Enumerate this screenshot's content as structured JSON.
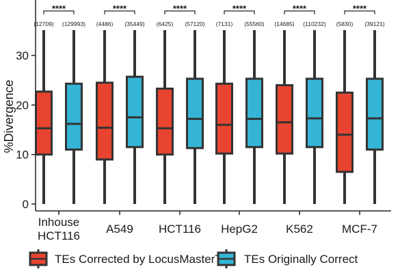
{
  "chart_data": {
    "type": "boxplot",
    "ylabel": "%Divergence",
    "ylim": [
      -1,
      37
    ],
    "yticks": [
      0,
      10,
      20,
      30
    ],
    "legend_position": "bottom",
    "series": [
      {
        "name": "TEs Corrected by LocusMasterTE",
        "color": "#e8442f"
      },
      {
        "name": "TEs Originally Correct",
        "color": "#35b5d6"
      }
    ],
    "groups": [
      {
        "label_lines": [
          "Inhouse",
          "HCT116"
        ],
        "significance": "****",
        "boxes": [
          {
            "n": "(12709)",
            "min": 0,
            "q1": 10,
            "median": 15.3,
            "q3": 22.7,
            "max": 38
          },
          {
            "n": "(129993)",
            "min": 0,
            "q1": 11,
            "median": 16.2,
            "q3": 24.3,
            "max": 38
          }
        ]
      },
      {
        "label_lines": [
          "A549"
        ],
        "significance": "****",
        "boxes": [
          {
            "n": "(4486)",
            "min": 0,
            "q1": 9,
            "median": 15.4,
            "q3": 24.5,
            "max": 38
          },
          {
            "n": "(35449)",
            "min": 0,
            "q1": 11.5,
            "median": 17.5,
            "q3": 25.7,
            "max": 38
          }
        ]
      },
      {
        "label_lines": [
          "HCT116"
        ],
        "significance": "****",
        "boxes": [
          {
            "n": "(6425)",
            "min": 0,
            "q1": 10,
            "median": 15.3,
            "q3": 23.3,
            "max": 38
          },
          {
            "n": "(57120)",
            "min": 0,
            "q1": 11.3,
            "median": 17.2,
            "q3": 25.3,
            "max": 38
          }
        ]
      },
      {
        "label_lines": [
          "HepG2"
        ],
        "significance": "****",
        "boxes": [
          {
            "n": "(7131)",
            "min": 0,
            "q1": 10.2,
            "median": 16,
            "q3": 24.3,
            "max": 38
          },
          {
            "n": "(55560)",
            "min": 0,
            "q1": 11.5,
            "median": 17.2,
            "q3": 25.3,
            "max": 38
          }
        ]
      },
      {
        "label_lines": [
          "K562"
        ],
        "significance": "****",
        "boxes": [
          {
            "n": "(14685)",
            "min": 0,
            "q1": 10.2,
            "median": 16.5,
            "q3": 24,
            "max": 38
          },
          {
            "n": "(110232)",
            "min": 0,
            "q1": 11.5,
            "median": 17.3,
            "q3": 25.3,
            "max": 38
          }
        ]
      },
      {
        "label_lines": [
          "MCF-7"
        ],
        "significance": "****",
        "boxes": [
          {
            "n": "(5830)",
            "min": 0,
            "q1": 6.5,
            "median": 14,
            "q3": 22.5,
            "max": 38
          },
          {
            "n": "(39121)",
            "min": 0,
            "q1": 11,
            "median": 17.3,
            "q3": 25.3,
            "max": 38
          }
        ]
      }
    ]
  }
}
